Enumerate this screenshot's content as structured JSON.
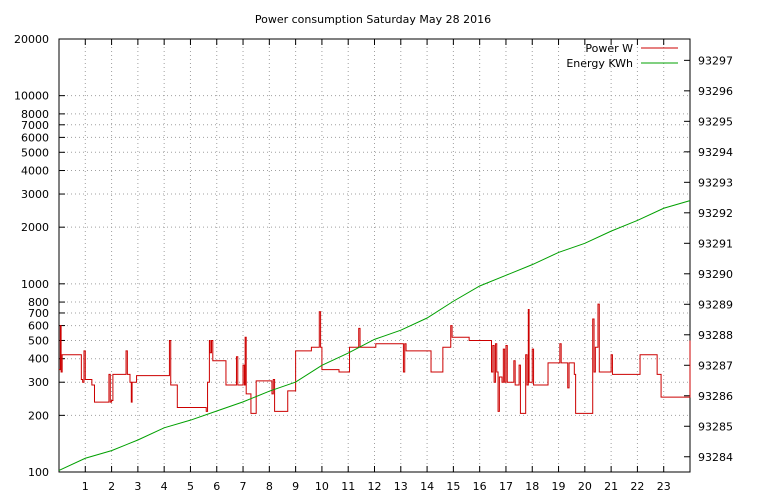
{
  "chart_data": {
    "type": "line",
    "title": "Power consumption Saturday May 28 2016",
    "xlabel": "",
    "ylabel": "",
    "y2label": "",
    "xlim": [
      0,
      24
    ],
    "xticks": [
      1,
      2,
      3,
      4,
      5,
      6,
      7,
      8,
      9,
      10,
      11,
      12,
      13,
      14,
      15,
      16,
      17,
      18,
      19,
      20,
      21,
      22,
      23
    ],
    "ylim": [
      100,
      20000
    ],
    "yscale": "log",
    "yticks": [
      100,
      200,
      300,
      400,
      500,
      600,
      700,
      800,
      1000,
      2000,
      3000,
      4000,
      5000,
      6000,
      7000,
      8000,
      10000,
      20000
    ],
    "y2lim": [
      93283.5,
      93297.7
    ],
    "y2ticks": [
      93284,
      93285,
      93286,
      93287,
      93288,
      93289,
      93290,
      93291,
      93292,
      93293,
      93294,
      93295,
      93296,
      93297
    ],
    "grid": true,
    "legend": "top-right",
    "series": [
      {
        "name": "Power W",
        "axis": "left",
        "color": "#cc0000",
        "points": [
          [
            0.0,
            350
          ],
          [
            0.05,
            600
          ],
          [
            0.08,
            340
          ],
          [
            0.12,
            420
          ],
          [
            0.75,
            420
          ],
          [
            0.85,
            310
          ],
          [
            0.9,
            300
          ],
          [
            0.95,
            440
          ],
          [
            1.0,
            310
          ],
          [
            1.15,
            310
          ],
          [
            1.25,
            290
          ],
          [
            1.35,
            235
          ],
          [
            1.85,
            235
          ],
          [
            1.9,
            330
          ],
          [
            1.95,
            235
          ],
          [
            2.0,
            240
          ],
          [
            2.05,
            330
          ],
          [
            2.5,
            330
          ],
          [
            2.55,
            440
          ],
          [
            2.6,
            330
          ],
          [
            2.7,
            300
          ],
          [
            2.75,
            235
          ],
          [
            2.78,
            300
          ],
          [
            2.85,
            300
          ],
          [
            2.95,
            325
          ],
          [
            4.15,
            325
          ],
          [
            4.2,
            500
          ],
          [
            4.25,
            290
          ],
          [
            4.45,
            290
          ],
          [
            4.5,
            220
          ],
          [
            5.55,
            220
          ],
          [
            5.6,
            210
          ],
          [
            5.65,
            300
          ],
          [
            5.72,
            500
          ],
          [
            5.75,
            430
          ],
          [
            5.8,
            500
          ],
          [
            5.85,
            390
          ],
          [
            6.3,
            390
          ],
          [
            6.35,
            290
          ],
          [
            6.7,
            290
          ],
          [
            6.75,
            410
          ],
          [
            6.8,
            290
          ],
          [
            6.95,
            290
          ],
          [
            7.0,
            370
          ],
          [
            7.05,
            290
          ],
          [
            7.08,
            520
          ],
          [
            7.12,
            260
          ],
          [
            7.25,
            260
          ],
          [
            7.3,
            205
          ],
          [
            7.45,
            205
          ],
          [
            7.5,
            305
          ],
          [
            8.05,
            305
          ],
          [
            8.1,
            260
          ],
          [
            8.15,
            310
          ],
          [
            8.2,
            210
          ],
          [
            8.65,
            210
          ],
          [
            8.7,
            270
          ],
          [
            8.95,
            270
          ],
          [
            9.0,
            440
          ],
          [
            9.4,
            440
          ],
          [
            9.6,
            460
          ],
          [
            9.85,
            460
          ],
          [
            9.9,
            710
          ],
          [
            9.95,
            460
          ],
          [
            10.0,
            350
          ],
          [
            10.6,
            350
          ],
          [
            10.65,
            340
          ],
          [
            11.0,
            340
          ],
          [
            11.05,
            460
          ],
          [
            11.3,
            460
          ],
          [
            11.4,
            580
          ],
          [
            11.45,
            460
          ],
          [
            12.0,
            460
          ],
          [
            12.05,
            480
          ],
          [
            13.05,
            480
          ],
          [
            13.1,
            340
          ],
          [
            13.15,
            480
          ],
          [
            13.2,
            440
          ],
          [
            14.1,
            440
          ],
          [
            14.15,
            340
          ],
          [
            14.55,
            340
          ],
          [
            14.6,
            460
          ],
          [
            14.85,
            460
          ],
          [
            14.9,
            600
          ],
          [
            14.95,
            520
          ],
          [
            15.55,
            520
          ],
          [
            15.6,
            500
          ],
          [
            16.4,
            500
          ],
          [
            16.45,
            340
          ],
          [
            16.5,
            470
          ],
          [
            16.55,
            300
          ],
          [
            16.6,
            480
          ],
          [
            16.65,
            340
          ],
          [
            16.7,
            210
          ],
          [
            16.75,
            320
          ],
          [
            16.85,
            300
          ],
          [
            16.9,
            450
          ],
          [
            16.95,
            300
          ],
          [
            17.0,
            470
          ],
          [
            17.05,
            300
          ],
          [
            17.2,
            300
          ],
          [
            17.3,
            390
          ],
          [
            17.35,
            290
          ],
          [
            17.45,
            290
          ],
          [
            17.5,
            370
          ],
          [
            17.55,
            205
          ],
          [
            17.7,
            205
          ],
          [
            17.75,
            420
          ],
          [
            17.8,
            290
          ],
          [
            17.85,
            730
          ],
          [
            17.88,
            300
          ],
          [
            18.0,
            450
          ],
          [
            18.05,
            290
          ],
          [
            18.55,
            290
          ],
          [
            18.6,
            380
          ],
          [
            19.0,
            380
          ],
          [
            19.05,
            480
          ],
          [
            19.1,
            380
          ],
          [
            19.3,
            380
          ],
          [
            19.35,
            280
          ],
          [
            19.4,
            380
          ],
          [
            19.55,
            380
          ],
          [
            19.6,
            330
          ],
          [
            19.65,
            205
          ],
          [
            20.25,
            205
          ],
          [
            20.3,
            650
          ],
          [
            20.35,
            340
          ],
          [
            20.4,
            460
          ],
          [
            20.45,
            460
          ],
          [
            20.5,
            780
          ],
          [
            20.55,
            340
          ],
          [
            20.95,
            340
          ],
          [
            21.0,
            420
          ],
          [
            21.05,
            330
          ],
          [
            22.05,
            330
          ],
          [
            22.1,
            420
          ],
          [
            22.7,
            420
          ],
          [
            22.75,
            330
          ],
          [
            22.85,
            330
          ],
          [
            22.9,
            250
          ],
          [
            23.95,
            250
          ],
          [
            24.0,
            500
          ]
        ]
      },
      {
        "name": "Energy KWh",
        "axis": "right",
        "color": "#00a000",
        "points": [
          [
            0,
            93283.55
          ],
          [
            1,
            93283.95
          ],
          [
            2,
            93284.2
          ],
          [
            3,
            93284.55
          ],
          [
            4,
            93284.95
          ],
          [
            5,
            93285.2
          ],
          [
            6,
            93285.5
          ],
          [
            7,
            93285.8
          ],
          [
            8,
            93286.15
          ],
          [
            9,
            93286.45
          ],
          [
            10,
            93287.0
          ],
          [
            11,
            93287.4
          ],
          [
            12,
            93287.85
          ],
          [
            13,
            93288.15
          ],
          [
            14,
            93288.55
          ],
          [
            15,
            93289.1
          ],
          [
            16,
            93289.6
          ],
          [
            17,
            93289.95
          ],
          [
            18,
            93290.3
          ],
          [
            19,
            93290.7
          ],
          [
            20,
            93291.0
          ],
          [
            21,
            93291.4
          ],
          [
            22,
            93291.75
          ],
          [
            23,
            93292.15
          ],
          [
            24,
            93292.4
          ]
        ]
      }
    ]
  }
}
